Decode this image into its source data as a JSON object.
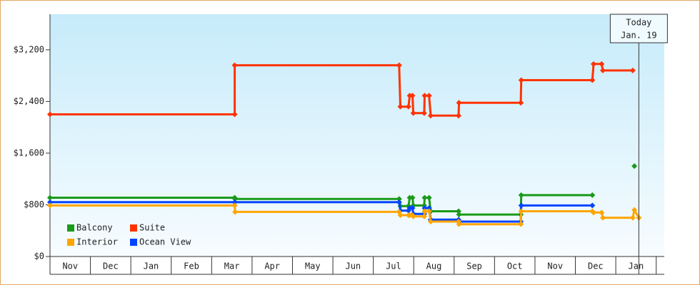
{
  "chart_data": {
    "type": "line",
    "categories": [
      "Nov",
      "Dec",
      "Jan",
      "Feb",
      "Mar",
      "Apr",
      "May",
      "Jun",
      "Jul",
      "Aug",
      "Sep",
      "Oct",
      "Nov",
      "Dec",
      "Jan"
    ],
    "xlim": [
      0,
      15.2
    ],
    "ylim": [
      0,
      3750
    ],
    "yticks": [
      {
        "value": 0,
        "label": "$0"
      },
      {
        "value": 800,
        "label": "$800"
      },
      {
        "value": 1600,
        "label": "$1,600"
      },
      {
        "value": 2400,
        "label": "$2,400"
      },
      {
        "value": 3200,
        "label": "$3,200"
      }
    ],
    "legend": "bottom-left",
    "annotation": {
      "x": 14.57,
      "lines": [
        "Today",
        "Jan. 19"
      ]
    },
    "series": [
      {
        "name": "Suite",
        "color": "#ff3300",
        "x": [
          0,
          4.57,
          4.57,
          8.64,
          8.67,
          8.87,
          8.9,
          8.97,
          8.99,
          9.26,
          9.27,
          9.38,
          9.42,
          10.11,
          10.12,
          11.65,
          11.66,
          13.42,
          13.45,
          13.65,
          13.68,
          14.42
        ],
        "values": [
          2200,
          2200,
          2960,
          2960,
          2320,
          2320,
          2490,
          2490,
          2220,
          2220,
          2490,
          2490,
          2180,
          2180,
          2380,
          2380,
          2730,
          2730,
          2980,
          2980,
          2880,
          2880
        ]
      },
      {
        "name": "Balcony",
        "color": "#1a9a1a",
        "x": [
          0,
          4.57,
          4.58,
          8.64,
          8.67,
          8.87,
          8.9,
          8.97,
          8.99,
          9.26,
          9.27,
          9.38,
          9.42,
          10.11,
          10.12,
          11.65,
          11.66,
          13.42,
          null,
          14.46
        ],
        "values": [
          910,
          910,
          890,
          890,
          780,
          780,
          910,
          910,
          790,
          790,
          910,
          910,
          700,
          700,
          650,
          650,
          950,
          950,
          null,
          1400
        ]
      },
      {
        "name": "Ocean View",
        "color": "#0044ff",
        "x": [
          0,
          4.57,
          8.64,
          8.67,
          8.87,
          8.9,
          8.97,
          8.99,
          9.26,
          9.27,
          9.38,
          9.42,
          10.11,
          10.12,
          11.65,
          11.66,
          13.42
        ],
        "values": [
          840,
          840,
          840,
          710,
          710,
          750,
          750,
          660,
          660,
          750,
          750,
          570,
          570,
          540,
          540,
          790,
          790
        ]
      },
      {
        "name": "Interior",
        "color": "#ffa500",
        "x": [
          0,
          4.57,
          4.58,
          8.64,
          8.67,
          8.87,
          8.9,
          8.97,
          8.99,
          9.26,
          9.27,
          9.38,
          9.42,
          10.11,
          10.12,
          11.65,
          11.66,
          13.42,
          13.45,
          13.65,
          13.68,
          14.42,
          14.46,
          14.57
        ],
        "values": [
          790,
          790,
          690,
          690,
          640,
          640,
          640,
          640,
          620,
          620,
          700,
          700,
          540,
          540,
          500,
          500,
          700,
          700,
          680,
          680,
          600,
          600,
          720,
          600
        ]
      }
    ]
  }
}
